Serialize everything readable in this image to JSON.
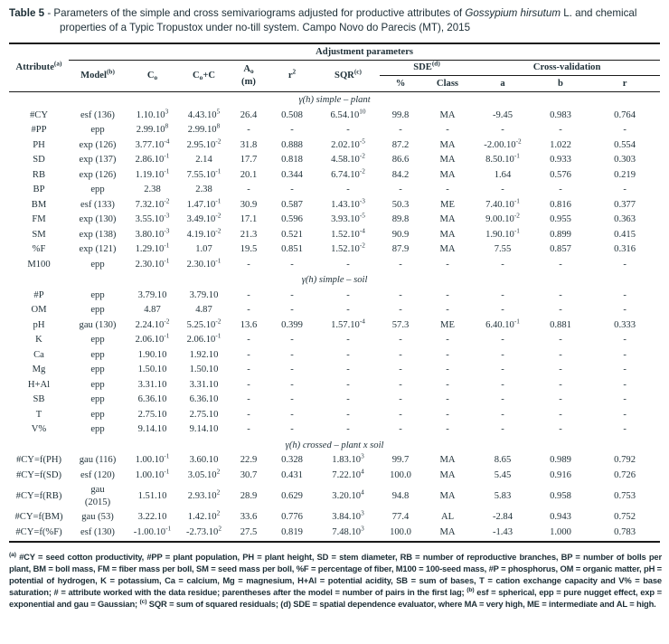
{
  "title": {
    "label": "Table 5",
    "separator": " - ",
    "seg1": "Parameters of the simple and cross semivariograms adjusted for productive attributes of ",
    "species_italic": "Gossypium hirsutum",
    "seg2": " L. and chemical properties of a Typic Tropustox under no-till system. Campo Novo do Parecis (MT), 2015"
  },
  "table": {
    "header": {
      "attribute": "Attribute^{(a)}",
      "group": "Adjustment parameters",
      "model": "Model^{(b)}",
      "c0": "C_{o}",
      "c0_plus_c": "C_{o}+C",
      "a0": "A_{o}\n(m)",
      "r2": "r^{2}",
      "sqr": "SQR^{(c)}",
      "sde": "SDE^{(d)}",
      "sde_pct": "%",
      "sde_class": "Class",
      "crossval": "Cross-validation",
      "cv_a": "a",
      "cv_b": "b",
      "cv_r": "r"
    },
    "sections": [
      {
        "title": "γ(h) simple – plant",
        "rows": [
          [
            "#CY",
            "esf (136)",
            "1.10.10^{3}",
            "4.43.10^{5}",
            "26.4",
            "0.508",
            "6.54.10^{10}",
            "99.8",
            "MA",
            "-9.45",
            "0.983",
            "0.764"
          ],
          [
            "#PP",
            "epp",
            "2.99.10^{8}",
            "2.99.10^{8}",
            "-",
            "-",
            "-",
            "-",
            "-",
            "-",
            "-",
            "-"
          ],
          [
            "PH",
            "exp (126)",
            "3.77.10^{-4}",
            "2.95.10^{-2}",
            "31.8",
            "0.888",
            "2.02.10^{-5}",
            "87.2",
            "MA",
            "-2.00.10^{-2}",
            "1.022",
            "0.554"
          ],
          [
            "SD",
            "exp (137)",
            "2.86.10^{-1}",
            "2.14",
            "17.7",
            "0.818",
            "4.58.10^{-2}",
            "86.6",
            "MA",
            "8.50.10^{-1}",
            "0.933",
            "0.303"
          ],
          [
            "RB",
            "exp (126)",
            "1.19.10^{-1}",
            "7.55.10^{-1}",
            "20.1",
            "0.344",
            "6.74.10^{-2}",
            "84.2",
            "MA",
            "1.64",
            "0.576",
            "0.219"
          ],
          [
            "BP",
            "epp",
            "2.38",
            "2.38",
            "-",
            "-",
            "-",
            "-",
            "-",
            "-",
            "-",
            "-"
          ],
          [
            "BM",
            "esf (133)",
            "7.32.10^{-2}",
            "1.47.10^{-1}",
            "30.9",
            "0.587",
            "1.43.10^{-3}",
            "50.3",
            "ME",
            "7.40.10^{-1}",
            "0.816",
            "0.377"
          ],
          [
            "FM",
            "exp (130)",
            "3.55.10^{-3}",
            "3.49.10^{-2}",
            "17.1",
            "0.596",
            "3.93.10^{-5}",
            "89.8",
            "MA",
            "9.00.10^{-2}",
            "0.955",
            "0.363"
          ],
          [
            "SM",
            "exp (138)",
            "3.80.10^{-3}",
            "4.19.10^{-2}",
            "21.3",
            "0.521",
            "1.52.10^{-4}",
            "90.9",
            "MA",
            "1.90.10^{-1}",
            "0.899",
            "0.415"
          ],
          [
            "%F",
            "exp (121)",
            "1.29.10^{-1}",
            "1.07",
            "19.5",
            "0.851",
            "1.52.10^{-2}",
            "87.9",
            "MA",
            "7.55",
            "0.857",
            "0.316"
          ],
          [
            "M100",
            "epp",
            "2.30.10^{-1}",
            "2.30.10^{-1}",
            "-",
            "-",
            "-",
            "-",
            "-",
            "-",
            "-",
            "-"
          ]
        ]
      },
      {
        "title": "γ(h) simple – soil",
        "rows": [
          [
            "#P",
            "epp",
            "3.79.10",
            "3.79.10",
            "-",
            "-",
            "-",
            "-",
            "-",
            "-",
            "-",
            "-"
          ],
          [
            "OM",
            "epp",
            "4.87",
            "4.87",
            "-",
            "-",
            "-",
            "-",
            "-",
            "-",
            "-",
            "-"
          ],
          [
            "pH",
            "gau (130)",
            "2.24.10^{-2}",
            "5.25.10^{-2}",
            "13.6",
            "0.399",
            "1.57.10^{-4}",
            "57.3",
            "ME",
            "6.40.10^{-1}",
            "0.881",
            "0.333"
          ],
          [
            "K",
            "epp",
            "2.06.10^{-1}",
            "2.06.10^{-1}",
            "-",
            "-",
            "-",
            "-",
            "-",
            "-",
            "-",
            "-"
          ],
          [
            "Ca",
            "epp",
            "1.90.10",
            "1.92.10",
            "-",
            "-",
            "-",
            "-",
            "-",
            "-",
            "-",
            "-"
          ],
          [
            "Mg",
            "epp",
            "1.50.10",
            "1.50.10",
            "-",
            "-",
            "-",
            "-",
            "-",
            "-",
            "-",
            "-"
          ],
          [
            "H+Al",
            "epp",
            "3.31.10",
            "3.31.10",
            "-",
            "-",
            "-",
            "-",
            "-",
            "-",
            "-",
            "-"
          ],
          [
            "SB",
            "epp",
            "6.36.10",
            "6.36.10",
            "-",
            "-",
            "-",
            "-",
            "-",
            "-",
            "-",
            "-"
          ],
          [
            "T",
            "epp",
            "2.75.10",
            "2.75.10",
            "-",
            "-",
            "-",
            "-",
            "-",
            "-",
            "-",
            "-"
          ],
          [
            "V%",
            "epp",
            "9.14.10",
            "9.14.10",
            "-",
            "-",
            "-",
            "-",
            "-",
            "-",
            "-",
            "-"
          ]
        ]
      },
      {
        "title": "γ(h) crossed – plant x soil",
        "rows": [
          [
            "#CY=f(PH)",
            "gau (116)",
            "1.00.10^{-1}",
            "3.60.10",
            "22.9",
            "0.328",
            "1.83.10^{3}",
            "99.7",
            "MA",
            "8.65",
            "0.989",
            "0.792"
          ],
          [
            "#CY=f(SD)",
            "esf (120)",
            "1.00.10^{-1}",
            "3.05.10^{2}",
            "30.7",
            "0.431",
            "7.22.10^{4}",
            "100.0",
            "MA",
            "5.45",
            "0.916",
            "0.726"
          ],
          [
            "#CY=f(RB)",
            "gau\n(2015)",
            "1.51.10",
            "2.93.10^{2}",
            "28.9",
            "0.629",
            "3.20.10^{4}",
            "94.8",
            "MA",
            "5.83",
            "0.958",
            "0.753"
          ],
          [
            "#CY=f(BM)",
            "gau (53)",
            "3.22.10",
            "1.42.10^{2}",
            "33.6",
            "0.776",
            "3.84.10^{3}",
            "77.4",
            "AL",
            "-2.84",
            "0.943",
            "0.752"
          ],
          [
            "#CY=f(%F)",
            "esf (130)",
            "-1.00.10^{-1}",
            "-2.73.10^{2}",
            "27.5",
            "0.819",
            "7.48.10^{3}",
            "100.0",
            "MA",
            "-1.43",
            "1.000",
            "0.783"
          ]
        ]
      }
    ]
  },
  "footnote": "^{(a)} #CY = seed cotton productivity, #PP = plant population, PH = plant height, SD = stem diameter, RB = number of reproductive branches, BP = number of bolls per plant, BM = boll mass, FM = fiber mass per boll, SM = seed mass per boll, %F = percentage of fiber, M100 = 100-seed mass, #P = phosphorus, OM = organic matter, pH = potential of hydrogen, K = potassium, Ca = calcium,  Mg = magnesium, H+Al = potential acidity, SB = sum of bases, T = cation exchange capacity and V% = base saturation; # = attribute worked with the data residue; parentheses after the model = number of pairs in the first lag; ^{(b)} esf = spherical, epp = pure nugget effect, exp = exponential and gau = Gaussian; ^{(c)} SQR = sum of squared residuals; (d) SDE = spatial dependence evaluator, where MA = very high, ME = intermediate and AL = high."
}
